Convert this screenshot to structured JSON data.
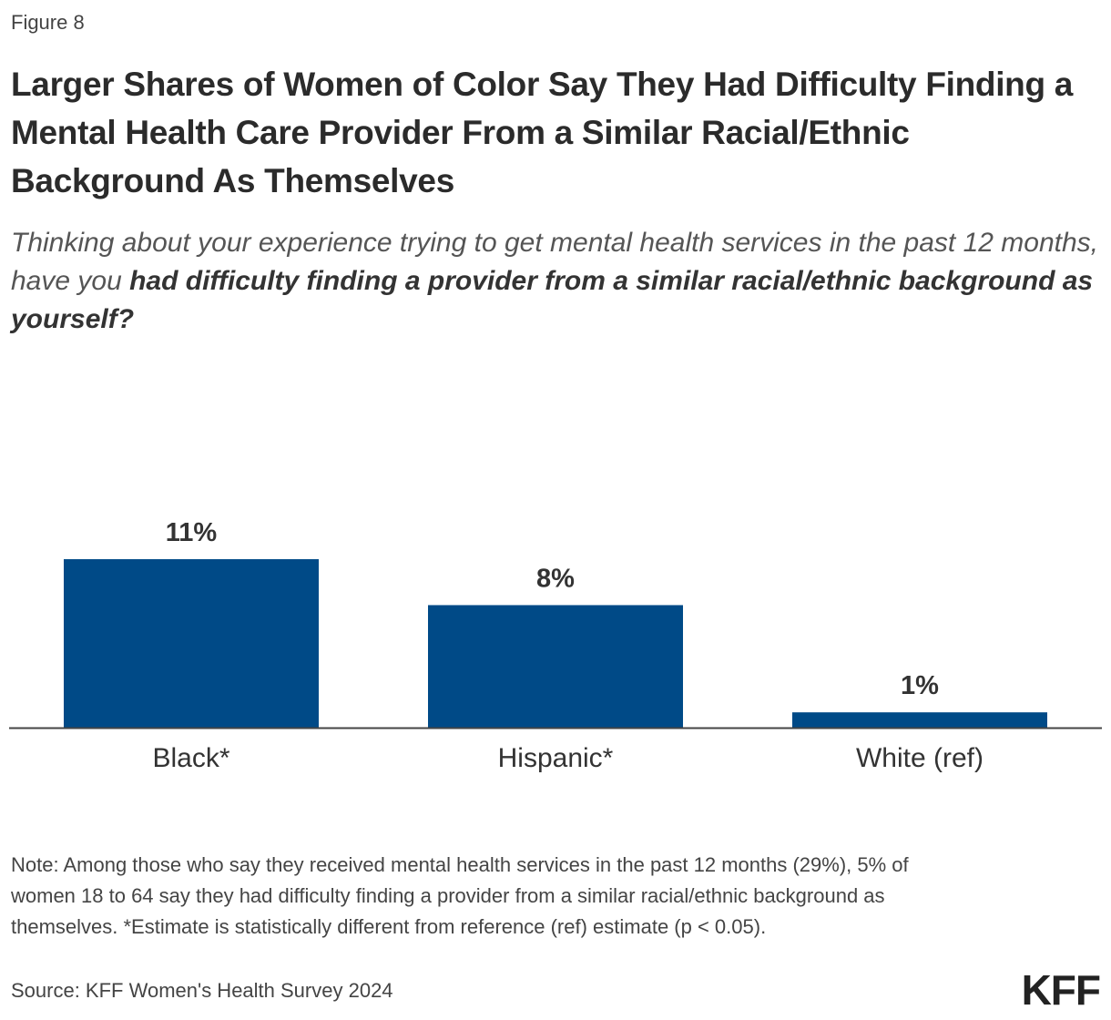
{
  "figure_label": "Figure 8",
  "title": "Larger Shares of Women of Color Say They Had Difficulty Finding a Mental Health Care Provider From a Similar Racial/Ethnic Background As Themselves",
  "subtitle": {
    "intro": "Thinking about your experience trying to get mental health services in the past 12 months, have you ",
    "emphasis": "had difficulty finding a provider from a similar racial/ethnic background as yourself?"
  },
  "chart_data": {
    "type": "bar",
    "title": "",
    "xlabel": "",
    "ylabel": "",
    "categories": [
      "Black*",
      "Hispanic*",
      "White (ref)"
    ],
    "values": [
      11,
      8,
      1
    ],
    "value_labels": [
      "11%",
      "8%",
      "1%"
    ],
    "ylim": [
      0,
      11
    ],
    "grid": false,
    "bar_color": "#004a87"
  },
  "note": "Note: Among those who say they received mental health services in the past 12 months (29%), 5% of women 18 to 64 say they had difficulty finding a provider from a similar racial/ethnic background as themselves. *Estimate is statistically different from reference (ref) estimate (p < 0.05).",
  "source": "Source: KFF Women's Health Survey 2024",
  "logo_text": "KFF",
  "colors": {
    "bar": "#004a87",
    "axis": "#444444",
    "text": "#333333"
  }
}
